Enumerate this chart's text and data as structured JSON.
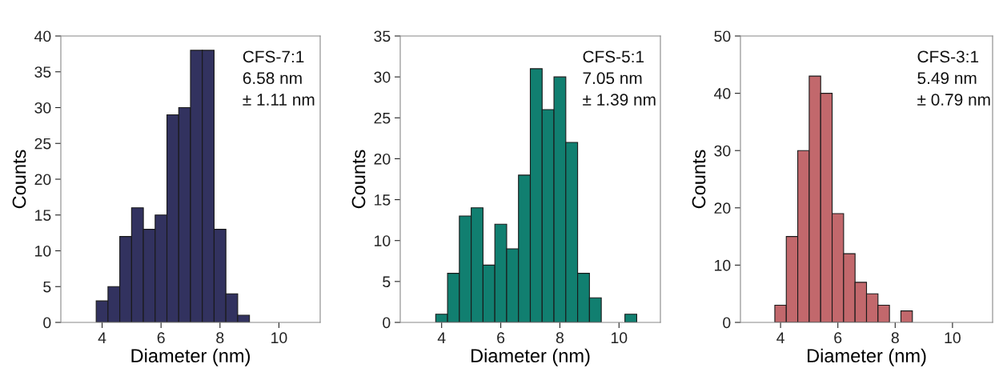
{
  "chart_data": [
    {
      "type": "histogram",
      "xlabel": "Diameter (nm)",
      "ylabel": "Counts",
      "annotations": [
        "CFS-7:1",
        "6.58 nm",
        "± 1.11 nm"
      ],
      "bins": [
        3.8,
        4.2,
        4.6,
        5.0,
        5.4,
        5.8,
        6.2,
        6.6,
        7.0,
        7.4,
        7.8,
        8.2,
        8.6,
        9.0
      ],
      "values": [
        3,
        5,
        12,
        16,
        13,
        15,
        29,
        30,
        38,
        38,
        13,
        4,
        1
      ],
      "color": "#32325f",
      "xlim": [
        2.6,
        11.4
      ],
      "xticks": [
        4,
        6,
        8,
        10
      ],
      "ylim": [
        0,
        40
      ],
      "yticks": [
        0,
        5,
        10,
        15,
        20,
        25,
        30,
        35,
        40
      ]
    },
    {
      "type": "histogram",
      "xlabel": "Diameter (nm)",
      "ylabel": "Counts",
      "annotations": [
        "CFS-5:1",
        "7.05 nm",
        "± 1.39 nm"
      ],
      "bins": [
        3.8,
        4.2,
        4.6,
        5.0,
        5.4,
        5.8,
        6.2,
        6.6,
        7.0,
        7.4,
        7.8,
        8.2,
        8.6,
        9.0,
        9.4,
        9.8,
        10.2,
        10.6
      ],
      "values": [
        1,
        6,
        13,
        14,
        7,
        12,
        9,
        18,
        31,
        26,
        30,
        22,
        6,
        3,
        0,
        0,
        1
      ],
      "color": "#117f70",
      "xlim": [
        2.6,
        11.4
      ],
      "xticks": [
        4,
        6,
        8,
        10
      ],
      "ylim": [
        0,
        35
      ],
      "yticks": [
        0,
        5,
        10,
        15,
        20,
        25,
        30,
        35
      ]
    },
    {
      "type": "histogram",
      "xlabel": "Diameter (nm)",
      "ylabel": "Counts",
      "annotations": [
        "CFS-3:1",
        "5.49 nm",
        "± 0.79 nm"
      ],
      "bins": [
        3.8,
        4.2,
        4.6,
        5.0,
        5.4,
        5.8,
        6.2,
        6.6,
        7.0,
        7.4,
        7.8,
        8.2,
        8.6
      ],
      "values": [
        3,
        15,
        30,
        43,
        40,
        19,
        12,
        7,
        5,
        3,
        0,
        2
      ],
      "color": "#c2686c",
      "xlim": [
        2.6,
        11.4
      ],
      "xticks": [
        4,
        6,
        8,
        10
      ],
      "ylim": [
        0,
        50
      ],
      "yticks": [
        0,
        10,
        20,
        30,
        40,
        50
      ]
    }
  ]
}
